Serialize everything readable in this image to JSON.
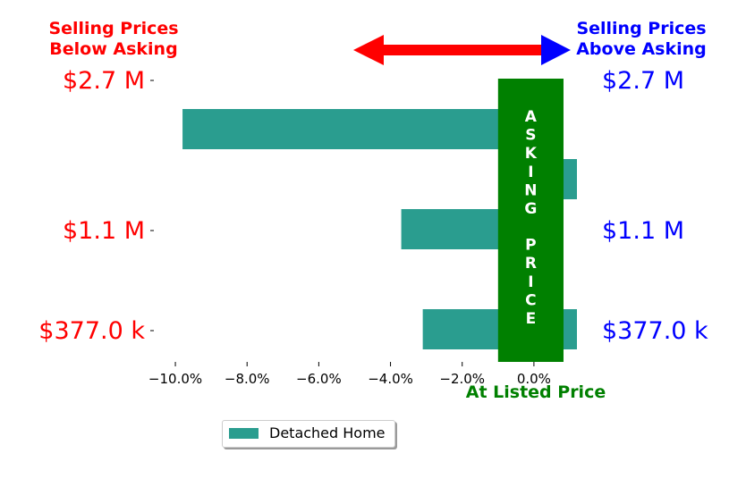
{
  "chart_data": {
    "type": "bar",
    "orientation": "horizontal",
    "categories": [
      "$2.7 M",
      "$1.1 M",
      "$377.0 k"
    ],
    "series": [
      {
        "name": "Detached Home",
        "values": [
          -9.8,
          -3.7,
          -3.1
        ],
        "color": "#2a9d8f"
      },
      {
        "name": "",
        "values": [
          1.2,
          1.2,
          0
        ],
        "color": "#2a9d8f"
      }
    ],
    "xlim": [
      -10.6,
      1.2
    ],
    "xticks": [
      -10,
      -8,
      -6,
      -4,
      -2,
      0
    ],
    "xtick_labels": [
      "−10.0%",
      "−8.0%",
      "−6.0%",
      "−4.0%",
      "−2.0%",
      "0.0%"
    ],
    "left_labels": [
      "$2.7 M",
      "$1.1 M",
      "$377.0 k"
    ],
    "right_labels": [
      "$2.7 M",
      "$1.1 M",
      "$377.0 k"
    ],
    "left_label_color": "#ff0000",
    "right_label_color": "#0000ff",
    "annotations": {
      "below_asking": "Selling Prices\nBelow Asking",
      "above_asking": "Selling Prices\nAbove Asking",
      "asking_price": "ASKING PRICE",
      "at_listed_price": "At Listed Price"
    },
    "asking_band_range": [
      -1.0,
      1.0
    ],
    "asking_color": "#008000",
    "arrow_color_left": "#ff0000",
    "arrow_color_right": "#0000ff",
    "legend": {
      "label": "Detached Home",
      "placement": "bottom-center"
    },
    "grid": false
  }
}
